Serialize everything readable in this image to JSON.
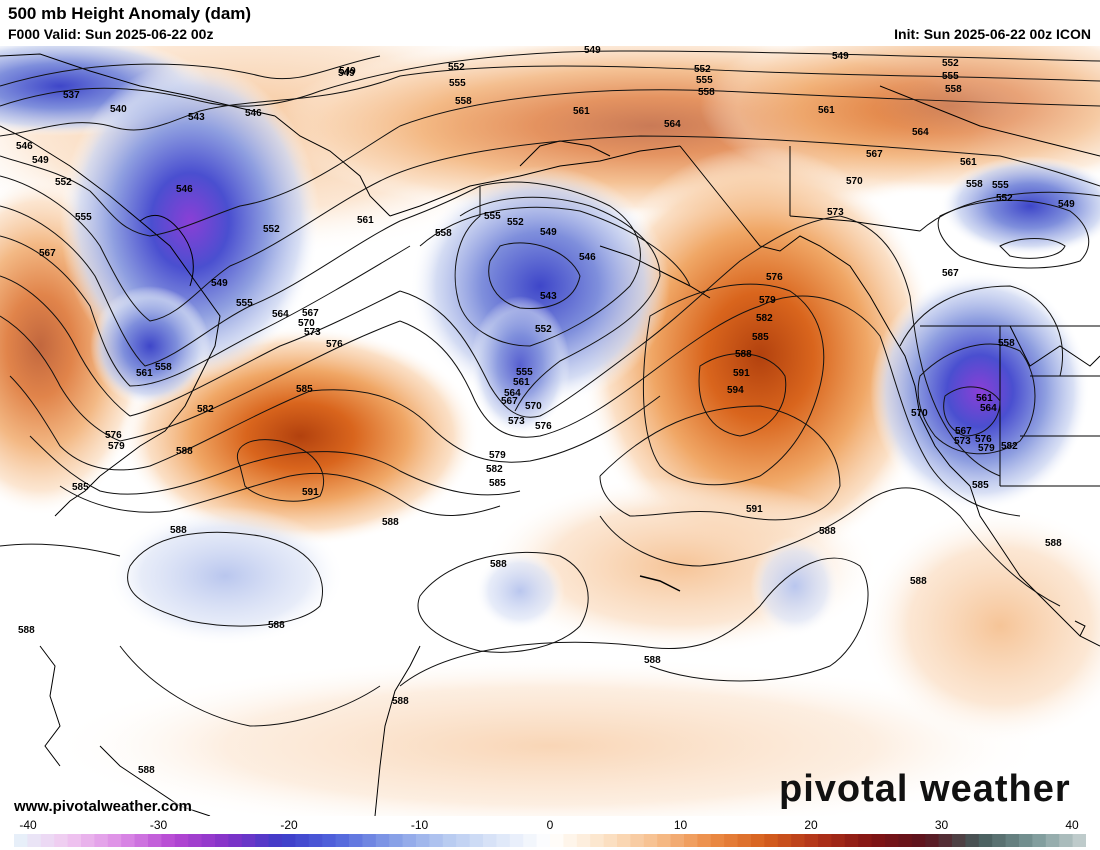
{
  "header": {
    "title": "500 mb Height Anomaly (dam)",
    "valid": "F000 Valid: Sun 2025-06-22 00z",
    "init": "Init: Sun 2025-06-22 00z ICON"
  },
  "branding": {
    "site_url": "www.pivotalweather.com",
    "brand_text": "pivotal weather"
  },
  "colorbar": {
    "ticks": [
      "-40",
      "-30",
      "-20",
      "-10",
      "0",
      "10",
      "20",
      "30",
      "40"
    ],
    "range": [
      -40,
      40
    ]
  },
  "anomaly_features": [
    {
      "name": "trough-nw-pacific",
      "sign": "negative",
      "strength": 0.9
    },
    {
      "name": "trough-sea-of-okhotsk",
      "sign": "negative",
      "strength": 0.6
    },
    {
      "name": "low-gulf-of-alaska-west",
      "sign": "negative",
      "strength": 0.7
    },
    {
      "name": "low-california",
      "sign": "negative",
      "strength": 0.75
    },
    {
      "name": "low-hudson-bay",
      "sign": "negative",
      "strength": 0.55
    },
    {
      "name": "ridge-north-pacific",
      "sign": "positive",
      "strength": 0.6
    },
    {
      "name": "ridge-kuroshio",
      "sign": "positive",
      "strength": 0.7
    },
    {
      "name": "ridge-ne-pacific",
      "sign": "positive",
      "strength": 0.85
    },
    {
      "name": "ridge-arctic",
      "sign": "positive",
      "strength": 0.5
    }
  ],
  "contour_labels": [
    {
      "text": "549"
    },
    {
      "text": "552"
    },
    {
      "text": "555"
    },
    {
      "text": "558"
    },
    {
      "text": "561"
    },
    {
      "text": "564"
    },
    {
      "text": "567"
    },
    {
      "text": "570"
    },
    {
      "text": "573"
    },
    {
      "text": "576"
    },
    {
      "text": "579"
    },
    {
      "text": "582"
    },
    {
      "text": "585"
    },
    {
      "text": "588"
    },
    {
      "text": "591"
    },
    {
      "text": "594"
    },
    {
      "text": "537"
    },
    {
      "text": "540"
    },
    {
      "text": "543"
    },
    {
      "text": "546"
    }
  ]
}
